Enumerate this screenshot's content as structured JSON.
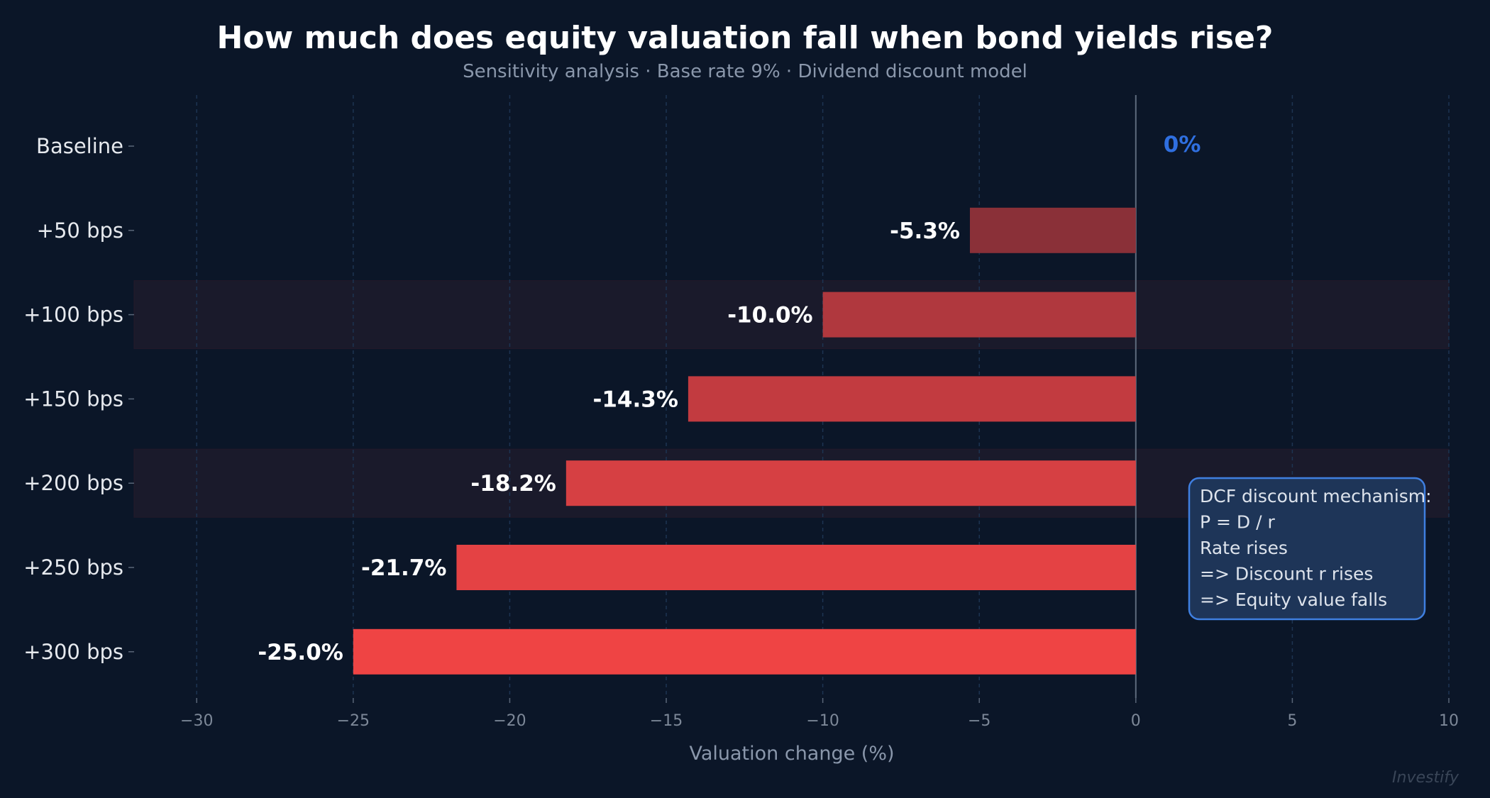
{
  "chart_data": {
    "type": "bar",
    "orientation": "horizontal",
    "title": "How much does equity valuation fall when bond yields rise?",
    "subtitle": "Sensitivity analysis · Base rate 9% · Dividend discount model",
    "xlabel": "Valuation change (%)",
    "ylabel": "",
    "xlim": [
      -32,
      10
    ],
    "xticks": [
      -30,
      -25,
      -20,
      -15,
      -10,
      -5,
      0,
      5,
      10
    ],
    "xtick_labels": [
      "−30",
      "−25",
      "−20",
      "−15",
      "−10",
      "−5",
      "0",
      "5",
      "10"
    ],
    "grid": "vertical dashed",
    "categories": [
      "Baseline",
      "+50 bps",
      "+100 bps",
      "+150 bps",
      "+200 bps",
      "+250 bps",
      "+300 bps"
    ],
    "values": [
      0,
      -5.3,
      -10.0,
      -14.3,
      -18.2,
      -21.7,
      -25.0
    ],
    "data_labels": [
      "0%",
      "-5.3%",
      "-10.0%",
      "-14.3%",
      "-18.2%",
      "-21.7%",
      "-25.0%"
    ],
    "highlighted_rows": [
      "+100 bps",
      "+200 bps"
    ],
    "bar_colors": [
      "#2f6fe0",
      "#8a3038",
      "#b0383e",
      "#c23b40",
      "#d64043",
      "#e44244",
      "#ef4444"
    ],
    "annotation": {
      "lines": [
        "DCF discount mechanism:",
        "P = D / r",
        "Rate rises",
        "=> Discount r rises",
        "=> Equity value falls"
      ]
    },
    "watermark": "Investify"
  },
  "colors": {
    "background": "#0b1628",
    "zero_label": "#2f6fe0",
    "annotation_border": "#3f7fe0",
    "annotation_fill": "#1e3558"
  }
}
